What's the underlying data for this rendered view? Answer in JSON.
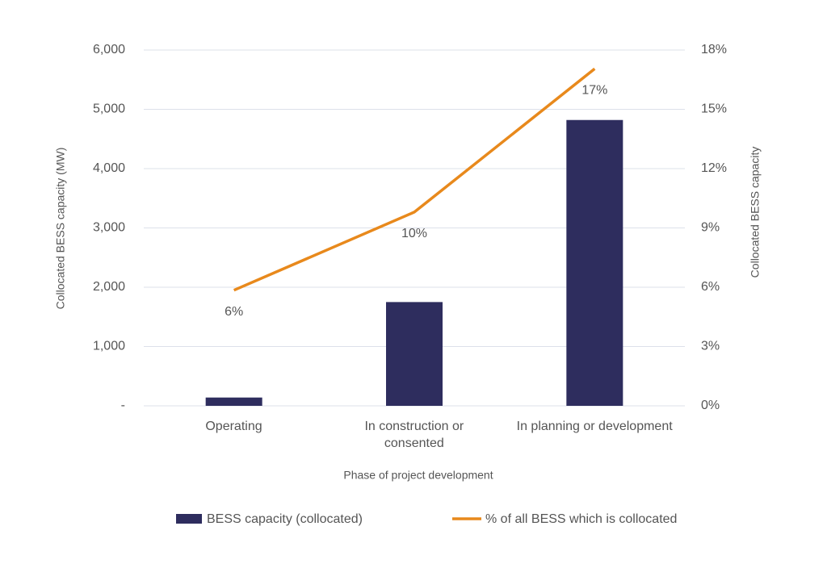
{
  "chart_data": {
    "type": "bar-line",
    "categories": [
      "Operating",
      "In construction or\nconsented",
      "In planning or development"
    ],
    "x_label": "Phase of project development",
    "y_label": "Collocated BESS capacity (MW)",
    "y2_label": "Collocated BESS capacity",
    "ylim": [
      0,
      6000
    ],
    "yticks": [
      {
        "value": 0,
        "label": "-"
      },
      {
        "value": 1000,
        "label": "1,000"
      },
      {
        "value": 2000,
        "label": "2,000"
      },
      {
        "value": 3000,
        "label": "3,000"
      },
      {
        "value": 4000,
        "label": "4,000"
      },
      {
        "value": 5000,
        "label": "5,000"
      },
      {
        "value": 6000,
        "label": "6,000"
      }
    ],
    "y2lim": [
      0,
      18
    ],
    "y2ticks": [
      {
        "value": 0,
        "label": "0%"
      },
      {
        "value": 3,
        "label": "3%"
      },
      {
        "value": 6,
        "label": "6%"
      },
      {
        "value": 9,
        "label": "9%"
      },
      {
        "value": 12,
        "label": "12%"
      },
      {
        "value": 15,
        "label": "15%"
      },
      {
        "value": 18,
        "label": "18%"
      }
    ],
    "grid": true,
    "legend": "bottom",
    "series": [
      {
        "name": "BESS capacity (collocated)",
        "type": "bar",
        "color": "#2e2d5e",
        "values": [
          140,
          1750,
          4820
        ]
      },
      {
        "name": "% of all BESS which is collocated",
        "type": "line",
        "axis": "y2",
        "color": "#e8891c",
        "values": [
          5.85,
          9.8,
          17.05
        ],
        "value_labels": [
          "6%",
          "10%",
          "17%"
        ]
      }
    ]
  }
}
